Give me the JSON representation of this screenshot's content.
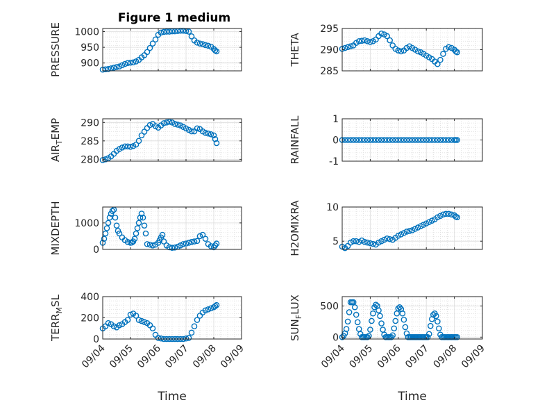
{
  "figure": {
    "title": "Figure 1 medium",
    "marker_color": "#0072BD"
  },
  "chart_data": [
    {
      "type": "scatter",
      "ylabel_main": "PRESSURE",
      "ylabel_sub": "",
      "ylabel_tail": "",
      "ylim": [
        875,
        1010
      ],
      "yticks": [
        900,
        950,
        1000
      ],
      "xticks": [],
      "xlabel": "",
      "x": [
        0,
        0.1,
        0.2,
        0.3,
        0.4,
        0.5,
        0.6,
        0.7,
        0.8,
        0.9,
        1.0,
        1.1,
        1.2,
        1.3,
        1.4,
        1.5,
        1.6,
        1.7,
        1.8,
        1.9,
        2.0,
        2.1,
        2.2,
        2.3,
        2.4,
        2.5,
        2.6,
        2.7,
        2.8,
        2.9,
        3.0,
        3.1,
        3.2,
        3.3,
        3.4,
        3.5,
        3.6,
        3.7,
        3.8,
        3.9,
        4.0,
        4.05,
        4.1
      ],
      "y": [
        879,
        880,
        881,
        883,
        885,
        887,
        889,
        893,
        897,
        900,
        901,
        902,
        905,
        910,
        918,
        925,
        935,
        948,
        962,
        975,
        990,
        997,
        999,
        1000,
        1000,
        1001,
        1001,
        1002,
        1003,
        1003,
        1002,
        1000,
        985,
        972,
        965,
        962,
        960,
        957,
        955,
        952,
        945,
        940,
        937
      ]
    },
    {
      "type": "scatter",
      "ylabel_main": "THETA",
      "ylabel_sub": "",
      "ylabel_tail": "",
      "ylim": [
        285,
        295
      ],
      "yticks": [
        285,
        290,
        295
      ],
      "xticks": [],
      "xlabel": "",
      "x": [
        0,
        0.1,
        0.2,
        0.3,
        0.4,
        0.5,
        0.6,
        0.7,
        0.8,
        0.9,
        1.0,
        1.1,
        1.2,
        1.3,
        1.4,
        1.5,
        1.6,
        1.7,
        1.8,
        1.9,
        2.0,
        2.1,
        2.2,
        2.3,
        2.4,
        2.5,
        2.6,
        2.7,
        2.8,
        2.9,
        3.0,
        3.1,
        3.2,
        3.3,
        3.4,
        3.5,
        3.6,
        3.7,
        3.8,
        3.9,
        4.0,
        4.05,
        4.1
      ],
      "y": [
        290.2,
        290.4,
        290.6,
        290.8,
        291.0,
        291.6,
        292.0,
        292.1,
        292.2,
        292.0,
        291.8,
        292.0,
        292.4,
        293.2,
        293.8,
        293.6,
        293.2,
        292.2,
        291.0,
        290.2,
        289.8,
        289.6,
        289.8,
        290.4,
        290.8,
        290.4,
        290.0,
        289.6,
        289.4,
        289.0,
        288.6,
        288.2,
        287.8,
        287.2,
        286.6,
        287.6,
        289.0,
        290.2,
        290.6,
        290.4,
        290.0,
        289.6,
        289.4
      ]
    },
    {
      "type": "scatter",
      "ylabel_main": "AIR",
      "ylabel_sub": "T",
      "ylabel_tail": "EMP",
      "ylim": [
        279.5,
        291
      ],
      "yticks": [
        280,
        285,
        290
      ],
      "xticks": [],
      "xlabel": "",
      "x": [
        0,
        0.1,
        0.2,
        0.3,
        0.4,
        0.5,
        0.6,
        0.7,
        0.8,
        0.9,
        1.0,
        1.1,
        1.2,
        1.3,
        1.4,
        1.5,
        1.6,
        1.7,
        1.8,
        1.9,
        2.0,
        2.1,
        2.2,
        2.3,
        2.4,
        2.5,
        2.6,
        2.7,
        2.8,
        2.9,
        3.0,
        3.1,
        3.2,
        3.3,
        3.4,
        3.5,
        3.6,
        3.7,
        3.8,
        3.9,
        4.0,
        4.05,
        4.1
      ],
      "y": [
        279.8,
        280.0,
        280.3,
        280.8,
        281.5,
        282.3,
        282.8,
        283.2,
        283.5,
        283.5,
        283.4,
        283.6,
        284.0,
        285.0,
        286.5,
        287.5,
        288.5,
        289.3,
        289.6,
        289.0,
        288.6,
        289.2,
        289.8,
        290.0,
        290.2,
        290.0,
        289.6,
        289.4,
        289.2,
        288.8,
        288.4,
        288.0,
        287.6,
        287.6,
        288.4,
        288.2,
        287.6,
        287.2,
        287.0,
        286.8,
        286.5,
        285.5,
        284.4
      ]
    },
    {
      "type": "scatter",
      "ylabel_main": "RAINFALL",
      "ylabel_sub": "",
      "ylabel_tail": "",
      "ylim": [
        -1,
        1
      ],
      "yticks": [
        -1,
        0,
        1
      ],
      "xticks": [],
      "xlabel": "",
      "x": [
        0,
        0.1,
        0.2,
        0.3,
        0.4,
        0.5,
        0.6,
        0.7,
        0.8,
        0.9,
        1.0,
        1.1,
        1.2,
        1.3,
        1.4,
        1.5,
        1.6,
        1.7,
        1.8,
        1.9,
        2.0,
        2.1,
        2.2,
        2.3,
        2.4,
        2.5,
        2.6,
        2.7,
        2.8,
        2.9,
        3.0,
        3.1,
        3.2,
        3.3,
        3.4,
        3.5,
        3.6,
        3.7,
        3.8,
        3.9,
        4.0,
        4.05,
        4.1
      ],
      "y": [
        0,
        0,
        0,
        0,
        0,
        0,
        0,
        0,
        0,
        0,
        0,
        0,
        0,
        0,
        0,
        0,
        0,
        0,
        0,
        0,
        0,
        0,
        0,
        0,
        0,
        0,
        0,
        0,
        0,
        0,
        0,
        0,
        0,
        0,
        0,
        0,
        0,
        0,
        0,
        0,
        0,
        0,
        0
      ]
    },
    {
      "type": "scatter",
      "ylabel_main": "MIXDEPTH",
      "ylabel_sub": "",
      "ylabel_tail": "",
      "ylim": [
        0,
        1600
      ],
      "yticks": [
        0,
        1000
      ],
      "xticks": [],
      "xlabel": "",
      "x": [
        0,
        0.05,
        0.1,
        0.15,
        0.2,
        0.25,
        0.3,
        0.35,
        0.4,
        0.45,
        0.5,
        0.55,
        0.6,
        0.7,
        0.8,
        0.9,
        1.0,
        1.05,
        1.1,
        1.15,
        1.2,
        1.25,
        1.3,
        1.35,
        1.4,
        1.45,
        1.5,
        1.55,
        1.6,
        1.7,
        1.8,
        1.9,
        2.0,
        2.05,
        2.1,
        2.15,
        2.2,
        2.3,
        2.4,
        2.5,
        2.6,
        2.7,
        2.8,
        2.9,
        3.0,
        3.1,
        3.2,
        3.3,
        3.4,
        3.5,
        3.6,
        3.7,
        3.8,
        3.9,
        4.0,
        4.05,
        4.1
      ],
      "y": [
        250,
        400,
        600,
        800,
        1000,
        1200,
        1350,
        1450,
        1500,
        1200,
        900,
        700,
        600,
        450,
        350,
        280,
        250,
        260,
        300,
        400,
        600,
        800,
        1000,
        1200,
        1350,
        1200,
        900,
        600,
        200,
        180,
        150,
        180,
        250,
        350,
        450,
        550,
        300,
        150,
        80,
        60,
        70,
        100,
        150,
        200,
        220,
        250,
        280,
        300,
        320,
        500,
        550,
        400,
        200,
        120,
        80,
        150,
        220
      ]
    },
    {
      "type": "scatter",
      "ylabel_main": "H2OMIXRA",
      "ylabel_sub": "",
      "ylabel_tail": "",
      "ylim": [
        3.8,
        10
      ],
      "yticks": [
        5,
        10
      ],
      "xticks": [],
      "xlabel": "",
      "x": [
        0,
        0.1,
        0.2,
        0.3,
        0.4,
        0.5,
        0.6,
        0.7,
        0.8,
        0.9,
        1.0,
        1.1,
        1.2,
        1.3,
        1.4,
        1.5,
        1.6,
        1.7,
        1.8,
        1.9,
        2.0,
        2.1,
        2.2,
        2.3,
        2.4,
        2.5,
        2.6,
        2.7,
        2.8,
        2.9,
        3.0,
        3.1,
        3.2,
        3.3,
        3.4,
        3.5,
        3.6,
        3.7,
        3.8,
        3.9,
        4.0,
        4.05,
        4.1
      ],
      "y": [
        4.2,
        4.0,
        4.3,
        4.8,
        5.0,
        5.0,
        4.9,
        5.1,
        4.9,
        4.8,
        4.7,
        4.6,
        4.5,
        4.8,
        5.0,
        5.2,
        5.4,
        5.3,
        5.2,
        5.5,
        5.8,
        6.0,
        6.2,
        6.4,
        6.5,
        6.6,
        6.8,
        7.0,
        7.2,
        7.4,
        7.6,
        7.8,
        8.0,
        8.2,
        8.5,
        8.7,
        8.9,
        9.0,
        9.0,
        8.9,
        8.8,
        8.6,
        8.5
      ]
    },
    {
      "type": "scatter",
      "ylabel_main": "TERR",
      "ylabel_sub": "M",
      "ylabel_tail": "SL",
      "ylim": [
        0,
        400
      ],
      "yticks": [
        0,
        200,
        400
      ],
      "xticks": [
        "09/04",
        "09/05",
        "09/06",
        "09/07",
        "09/08",
        "09/09"
      ],
      "xlabel": "Time",
      "x": [
        0,
        0.1,
        0.2,
        0.3,
        0.4,
        0.5,
        0.6,
        0.7,
        0.8,
        0.9,
        1.0,
        1.1,
        1.2,
        1.3,
        1.4,
        1.5,
        1.6,
        1.7,
        1.8,
        1.9,
        2.0,
        2.1,
        2.2,
        2.3,
        2.4,
        2.5,
        2.6,
        2.7,
        2.8,
        2.9,
        3.0,
        3.1,
        3.2,
        3.3,
        3.4,
        3.5,
        3.6,
        3.7,
        3.8,
        3.9,
        4.0,
        4.05,
        4.1
      ],
      "y": [
        100,
        120,
        150,
        140,
        120,
        110,
        130,
        140,
        160,
        180,
        230,
        240,
        220,
        180,
        170,
        160,
        150,
        130,
        100,
        40,
        10,
        5,
        0,
        0,
        0,
        0,
        0,
        0,
        0,
        0,
        5,
        10,
        60,
        120,
        180,
        220,
        250,
        270,
        280,
        290,
        300,
        310,
        320
      ]
    },
    {
      "type": "scatter",
      "ylabel_main": "SUN",
      "ylabel_sub": "F",
      "ylabel_tail": "LUX",
      "ylim": [
        -30,
        650
      ],
      "yticks": [
        0,
        500
      ],
      "xticks": [
        "09/04",
        "09/05",
        "09/06",
        "09/07",
        "09/08",
        "09/09"
      ],
      "xlabel": "Time",
      "x": [
        0,
        0.05,
        0.1,
        0.15,
        0.2,
        0.25,
        0.3,
        0.35,
        0.4,
        0.45,
        0.5,
        0.55,
        0.6,
        0.65,
        0.7,
        0.75,
        0.8,
        0.85,
        0.9,
        0.95,
        1.0,
        1.05,
        1.1,
        1.15,
        1.2,
        1.25,
        1.3,
        1.35,
        1.4,
        1.45,
        1.5,
        1.55,
        1.6,
        1.65,
        1.7,
        1.75,
        1.8,
        1.85,
        1.9,
        1.95,
        2.0,
        2.05,
        2.1,
        2.15,
        2.2,
        2.25,
        2.3,
        2.35,
        2.4,
        2.45,
        2.5,
        2.55,
        2.6,
        2.65,
        2.7,
        2.75,
        2.8,
        2.85,
        2.9,
        2.95,
        3.0,
        3.05,
        3.1,
        3.15,
        3.2,
        3.25,
        3.3,
        3.35,
        3.4,
        3.45,
        3.5,
        3.55,
        3.6,
        3.65,
        3.7,
        3.75,
        3.8,
        3.85,
        3.9,
        3.95,
        4.0,
        4.05,
        4.1
      ],
      "y": [
        0,
        20,
        60,
        130,
        250,
        400,
        560,
        560,
        560,
        480,
        360,
        240,
        130,
        50,
        0,
        0,
        0,
        0,
        0,
        20,
        120,
        260,
        380,
        480,
        520,
        500,
        430,
        340,
        220,
        120,
        40,
        0,
        0,
        0,
        0,
        0,
        30,
        140,
        260,
        380,
        460,
        480,
        450,
        380,
        280,
        160,
        60,
        0,
        0,
        0,
        0,
        0,
        0,
        0,
        0,
        0,
        0,
        0,
        0,
        0,
        0,
        0,
        50,
        180,
        290,
        360,
        380,
        340,
        250,
        140,
        40,
        0,
        0,
        0,
        0,
        0,
        0,
        0,
        0,
        0,
        0,
        0,
        0
      ]
    }
  ]
}
